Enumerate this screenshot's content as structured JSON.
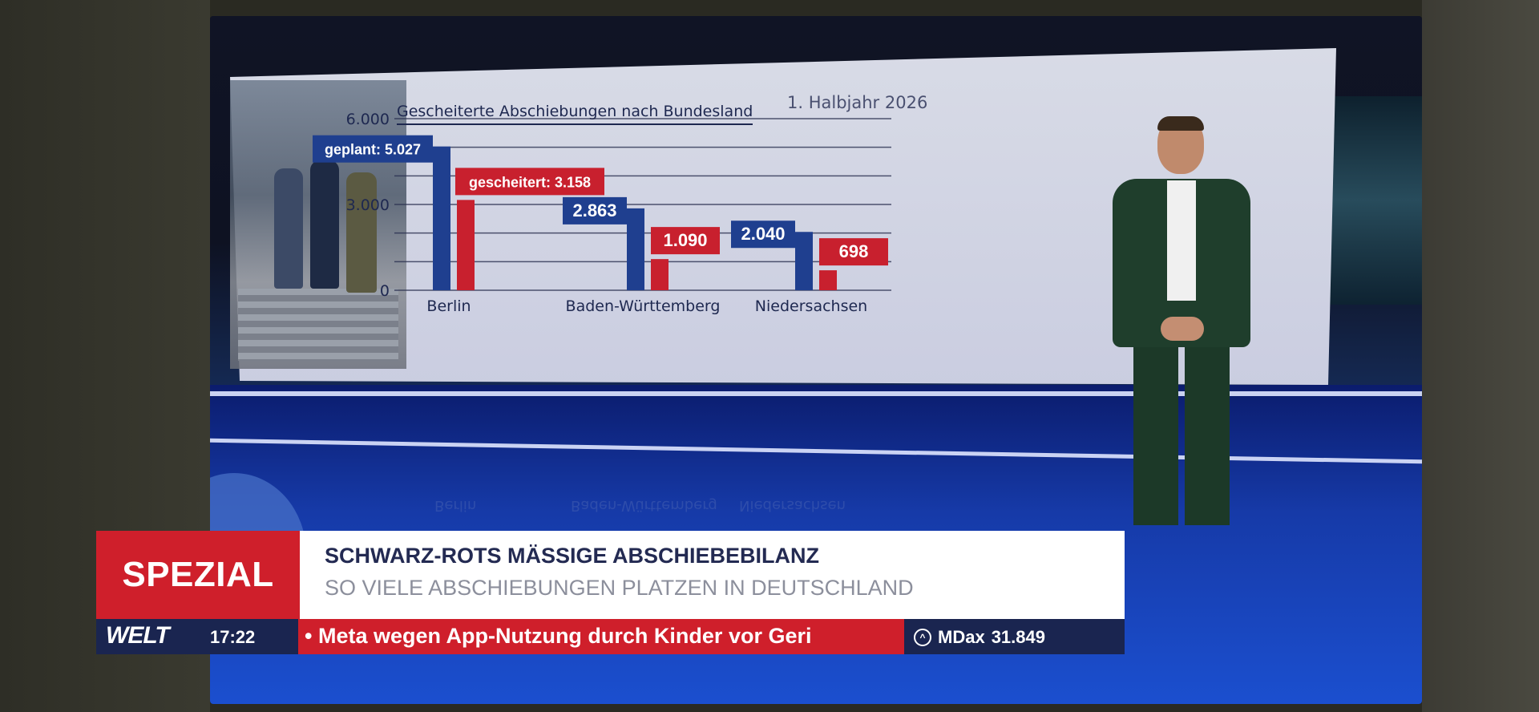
{
  "chart": {
    "title": "Gescheiterte Abschiebungen nach Bundesland",
    "subtitle": "1. Halbjahr 2026"
  },
  "chart_data": {
    "type": "bar",
    "title": "Gescheiterte Abschiebungen nach Bundesland",
    "subtitle": "1. Halbjahr 2026",
    "categories": [
      "Berlin",
      "Baden-Württemberg",
      "Niedersachsen"
    ],
    "series": [
      {
        "name": "geplant",
        "color": "#1f3f8f",
        "values": [
          5027,
          2863,
          2040
        ],
        "labels": [
          "5.027",
          "2.863",
          "2.040"
        ]
      },
      {
        "name": "gescheitert",
        "color": "#c8202e",
        "values": [
          3158,
          1090,
          698
        ],
        "labels": [
          "3.158",
          "1.090",
          "698"
        ]
      }
    ],
    "ylim": [
      0,
      6000
    ],
    "yticks": [
      0,
      3000,
      6000
    ],
    "ytick_labels": [
      "0",
      "3.000",
      "6.000"
    ],
    "series_prefix": {
      "geplant": "geplant:",
      "gescheitert": "gescheitert:"
    },
    "grid": true
  },
  "lower_third": {
    "badge": "SPEZIAL",
    "headline": "SCHWARZ-ROTS MÄSSIGE ABSCHIEBEBILANZ",
    "subline": "SO VIELE ABSCHIEBUNGEN PLATZEN IN DEUTSCHLAND"
  },
  "ticker": {
    "logo": "WELT",
    "time": "17:22",
    "text": "• Meta wegen App-Nutzung durch Kinder vor Geri",
    "market_name": "MDax",
    "market_value": "31.849"
  },
  "colors": {
    "accent_red": "#cf1f2b",
    "navy": "#1a2550",
    "bar_blue": "#1f3f8f",
    "bar_red": "#c8202e"
  }
}
